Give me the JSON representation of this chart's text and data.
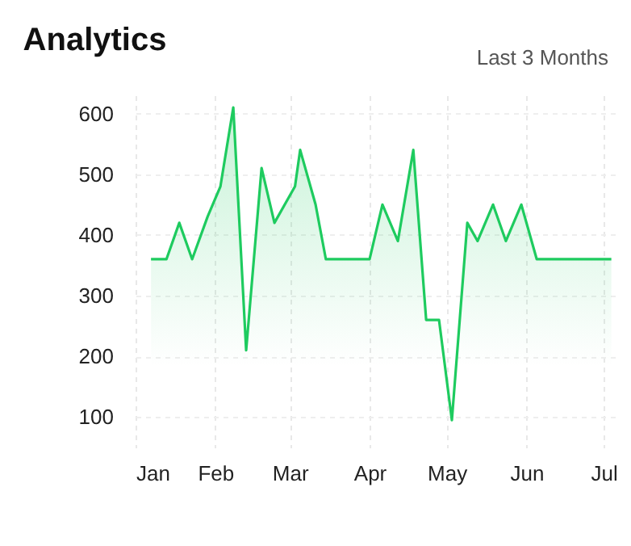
{
  "chart_data": {
    "type": "area",
    "title": "Analytics",
    "annotations": [
      "Last 3 Months"
    ],
    "x": [
      "--01-07",
      "--01-13",
      "--01-18",
      "--01-23",
      "--01-29",
      "--02-03",
      "--02-08",
      "--02-13",
      "--02-19",
      "--02-24",
      "--03-03",
      "--03-05",
      "--03-11",
      "--03-15",
      "--04-01",
      "--04-06",
      "--04-12",
      "--04-18",
      "--04-23",
      "--04-28",
      "--05-03",
      "--05-09",
      "--05-13",
      "--05-19",
      "--05-24",
      "--05-30",
      "--06-05",
      "--07-04"
    ],
    "series": [
      {
        "color": "#1ecb5f",
        "values": [
          360,
          360,
          420,
          360,
          430,
          480,
          610,
          210,
          510,
          420,
          480,
          540,
          450,
          360,
          360,
          450,
          390,
          540,
          260,
          260,
          95,
          420,
          390,
          450,
          390,
          450,
          360,
          360
        ]
      }
    ],
    "xlim": [
      "--01-01",
      "--07-06"
    ],
    "xticks": [
      {
        "value": "--01-01",
        "label": "Jan"
      },
      {
        "value": "--02-01",
        "label": "Feb"
      },
      {
        "value": "--03-01",
        "label": "Mar"
      },
      {
        "value": "--04-01",
        "label": "Apr"
      },
      {
        "value": "--05-01",
        "label": "May"
      },
      {
        "value": "--06-01",
        "label": "Jun"
      },
      {
        "value": "--07-01",
        "label": "Jul"
      }
    ],
    "ylim": [
      50,
      630
    ],
    "yticks": [
      100,
      200,
      300,
      400,
      500,
      600
    ],
    "grid": true
  }
}
